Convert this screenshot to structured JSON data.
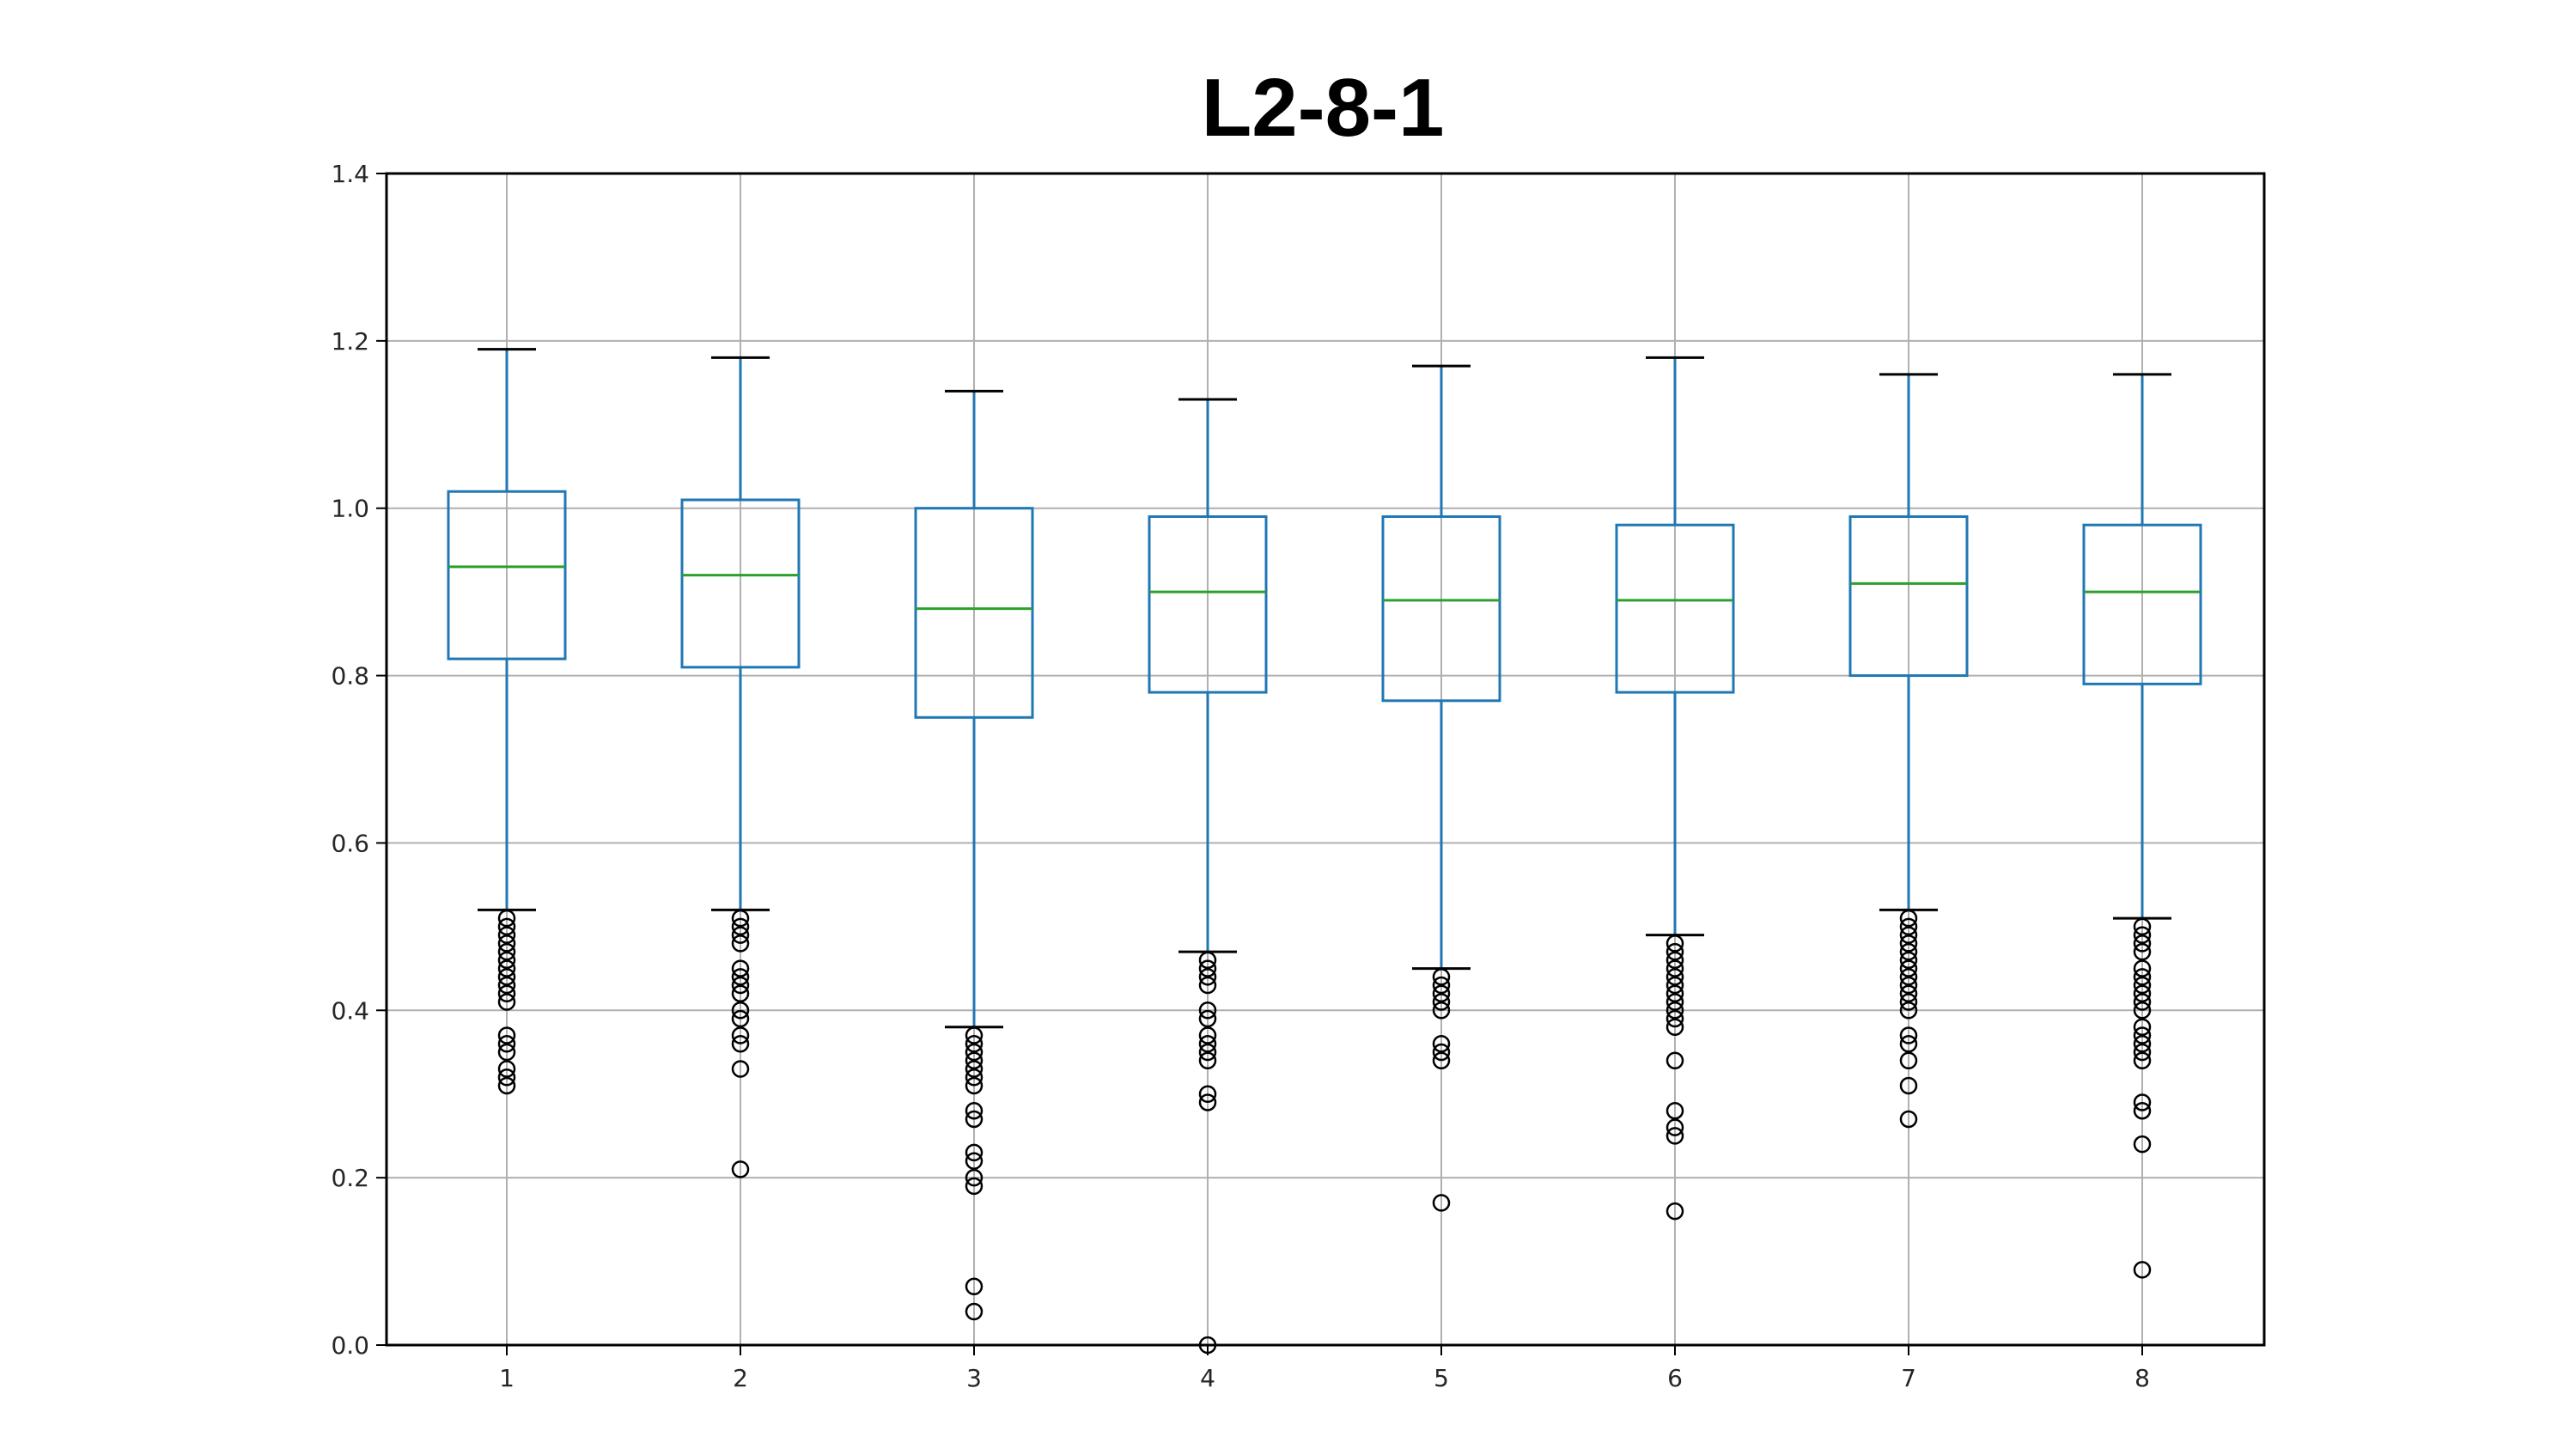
{
  "chart_data": {
    "type": "boxplot",
    "title": "L2-8-1",
    "xlabel": "",
    "ylabel": "",
    "categories": [
      "1",
      "2",
      "3",
      "4",
      "5",
      "6",
      "7",
      "8"
    ],
    "ylim": [
      0.0,
      1.4
    ],
    "yticks": [
      0.0,
      0.2,
      0.4,
      0.6,
      0.8,
      1.0,
      1.2,
      1.4
    ],
    "ytick_labels": [
      "0.0",
      "0.2",
      "0.4",
      "0.6",
      "0.8",
      "1.0",
      "1.2",
      "1.4"
    ],
    "grid": true,
    "colors": {
      "box": "#1f77b4",
      "median": "#2ca02c",
      "whisker_cap": "#000000",
      "grid": "#b0b0b0"
    },
    "boxes": [
      {
        "category": "1",
        "whisker_low": 0.52,
        "q1": 0.82,
        "median": 0.93,
        "q3": 1.02,
        "whisker_high": 1.19,
        "outliers": [
          0.51,
          0.5,
          0.49,
          0.48,
          0.47,
          0.46,
          0.45,
          0.44,
          0.43,
          0.42,
          0.41,
          0.37,
          0.36,
          0.35,
          0.33,
          0.32,
          0.31
        ]
      },
      {
        "category": "2",
        "whisker_low": 0.52,
        "q1": 0.81,
        "median": 0.92,
        "q3": 1.01,
        "whisker_high": 1.18,
        "outliers": [
          0.51,
          0.5,
          0.49,
          0.48,
          0.45,
          0.44,
          0.43,
          0.42,
          0.4,
          0.39,
          0.37,
          0.36,
          0.33,
          0.21
        ]
      },
      {
        "category": "3",
        "whisker_low": 0.38,
        "q1": 0.75,
        "median": 0.88,
        "q3": 1.0,
        "whisker_high": 1.14,
        "outliers": [
          0.37,
          0.36,
          0.35,
          0.34,
          0.33,
          0.32,
          0.31,
          0.28,
          0.27,
          0.23,
          0.22,
          0.2,
          0.19,
          0.07,
          0.04
        ]
      },
      {
        "category": "4",
        "whisker_low": 0.47,
        "q1": 0.78,
        "median": 0.9,
        "q3": 0.99,
        "whisker_high": 1.13,
        "outliers": [
          0.46,
          0.45,
          0.44,
          0.43,
          0.4,
          0.39,
          0.37,
          0.36,
          0.35,
          0.34,
          0.3,
          0.29,
          0.0
        ]
      },
      {
        "category": "5",
        "whisker_low": 0.45,
        "q1": 0.77,
        "median": 0.89,
        "q3": 0.99,
        "whisker_high": 1.17,
        "outliers": [
          0.44,
          0.43,
          0.42,
          0.41,
          0.4,
          0.36,
          0.35,
          0.34,
          0.17
        ]
      },
      {
        "category": "6",
        "whisker_low": 0.49,
        "q1": 0.78,
        "median": 0.89,
        "q3": 0.98,
        "whisker_high": 1.18,
        "outliers": [
          0.48,
          0.47,
          0.46,
          0.45,
          0.44,
          0.43,
          0.42,
          0.41,
          0.4,
          0.39,
          0.38,
          0.34,
          0.28,
          0.26,
          0.25,
          0.16
        ]
      },
      {
        "category": "7",
        "whisker_low": 0.52,
        "q1": 0.8,
        "median": 0.91,
        "q3": 0.99,
        "whisker_high": 1.16,
        "outliers": [
          0.51,
          0.5,
          0.49,
          0.48,
          0.47,
          0.46,
          0.45,
          0.44,
          0.43,
          0.42,
          0.41,
          0.4,
          0.37,
          0.36,
          0.34,
          0.31,
          0.27
        ]
      },
      {
        "category": "8",
        "whisker_low": 0.51,
        "q1": 0.79,
        "median": 0.9,
        "q3": 0.98,
        "whisker_high": 1.16,
        "outliers": [
          0.5,
          0.49,
          0.48,
          0.47,
          0.45,
          0.44,
          0.43,
          0.42,
          0.41,
          0.4,
          0.38,
          0.37,
          0.36,
          0.35,
          0.34,
          0.29,
          0.28,
          0.24,
          0.09
        ]
      }
    ]
  }
}
